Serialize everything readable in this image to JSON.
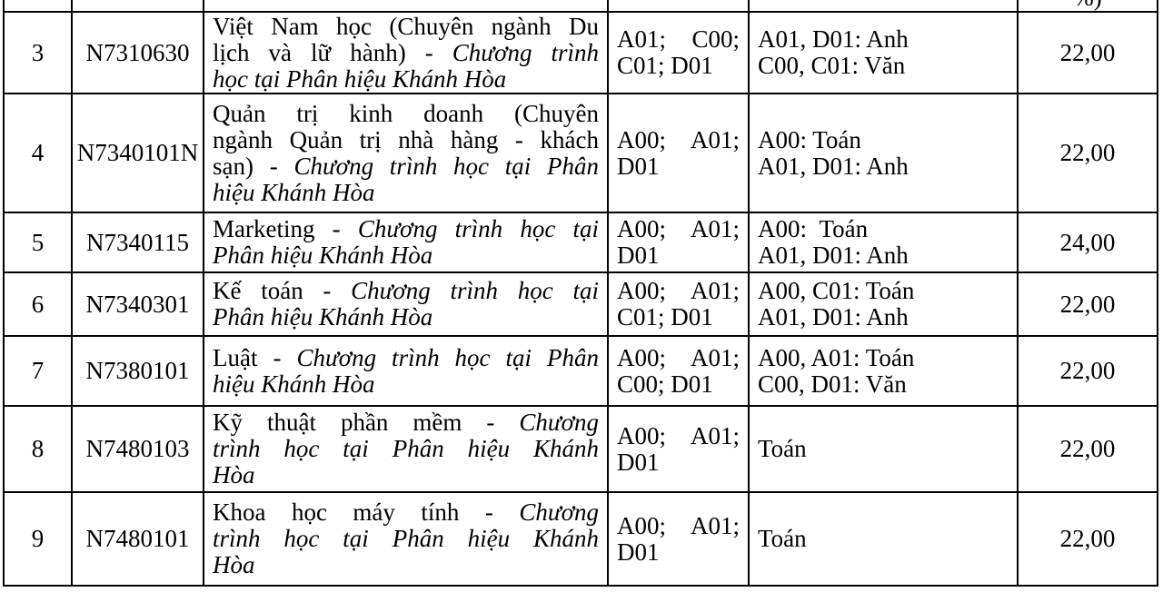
{
  "table": {
    "header_fragment": "%)",
    "rows": [
      {
        "stt": "3",
        "code": "N7310630",
        "name_lines": [
          [
            {
              "t": "Việt Nam học (Chuyên ngành Du",
              "i": false
            }
          ],
          [
            {
              "t": "lịch và lữ hành) - ",
              "i": false
            },
            {
              "t": "Chương trình",
              "i": true
            }
          ],
          [
            {
              "t": "học tại Phân hiệu Khánh Hòa",
              "i": true
            }
          ]
        ],
        "combos": "A01; C00; C01; D01",
        "subjects": "A01, D01: Anh\nC00, C01: Văn",
        "score": "22,00"
      },
      {
        "stt": "4",
        "code": "N7340101N",
        "name_lines": [
          [
            {
              "t": "Quản trị kinh doanh (Chuyên",
              "i": false
            }
          ],
          [
            {
              "t": "ngành Quản trị nhà hàng - khách",
              "i": false
            }
          ],
          [
            {
              "t": "sạn) - ",
              "i": false
            },
            {
              "t": "Chương trình học tại Phân",
              "i": true
            }
          ],
          [
            {
              "t": "hiệu Khánh Hòa",
              "i": true
            }
          ]
        ],
        "combos": "A00; A01; D01",
        "subjects": "A00: Toán\nA01, D01: Anh",
        "score": "22,00"
      },
      {
        "stt": "5",
        "code": "N7340115",
        "name_lines": [
          [
            {
              "t": "Marketing - ",
              "i": false
            },
            {
              "t": "Chương trình học tại",
              "i": true
            }
          ],
          [
            {
              "t": "Phân hiệu Khánh Hòa",
              "i": true
            }
          ]
        ],
        "combos": "A00; A01; D01",
        "subjects": "A00:  Toán\nA01, D01: Anh",
        "score": "24,00"
      },
      {
        "stt": "6",
        "code": "N7340301",
        "name_lines": [
          [
            {
              "t": "Kế toán - ",
              "i": false
            },
            {
              "t": "Chương trình học tại",
              "i": true
            }
          ],
          [
            {
              "t": "Phân hiệu Khánh Hòa",
              "i": true
            }
          ]
        ],
        "combos": "A00; A01; C01; D01",
        "subjects": "A00, C01: Toán\nA01, D01: Anh",
        "score": "22,00"
      },
      {
        "stt": "7",
        "code": "N7380101",
        "name_lines": [
          [
            {
              "t": "Luật - ",
              "i": false
            },
            {
              "t": "Chương trình học tại Phân",
              "i": true
            }
          ],
          [
            {
              "t": "hiệu Khánh Hòa",
              "i": true
            }
          ]
        ],
        "combos": "A00; A01; C00; D01",
        "subjects": "A00, A01: Toán\nC00, D01: Văn",
        "score": "22,00"
      },
      {
        "stt": "8",
        "code": "N7480103",
        "name_lines": [
          [
            {
              "t": "Kỹ thuật phần mềm - ",
              "i": false
            },
            {
              "t": "Chương",
              "i": true
            }
          ],
          [
            {
              "t": "trình học tại Phân hiệu Khánh",
              "i": true
            }
          ],
          [
            {
              "t": "Hòa",
              "i": true
            }
          ]
        ],
        "combos": "A00; A01; D01",
        "subjects": "Toán",
        "score": "22,00"
      },
      {
        "stt": "9",
        "code": "N7480101",
        "name_lines": [
          [
            {
              "t": "Khoa học máy tính - ",
              "i": false
            },
            {
              "t": "Chương",
              "i": true
            }
          ],
          [
            {
              "t": "trình học tại Phân hiệu Khánh",
              "i": true
            }
          ],
          [
            {
              "t": "Hòa",
              "i": true
            }
          ]
        ],
        "combos": "A00; A01; D01",
        "subjects": "Toán",
        "score": "22,00"
      }
    ]
  }
}
